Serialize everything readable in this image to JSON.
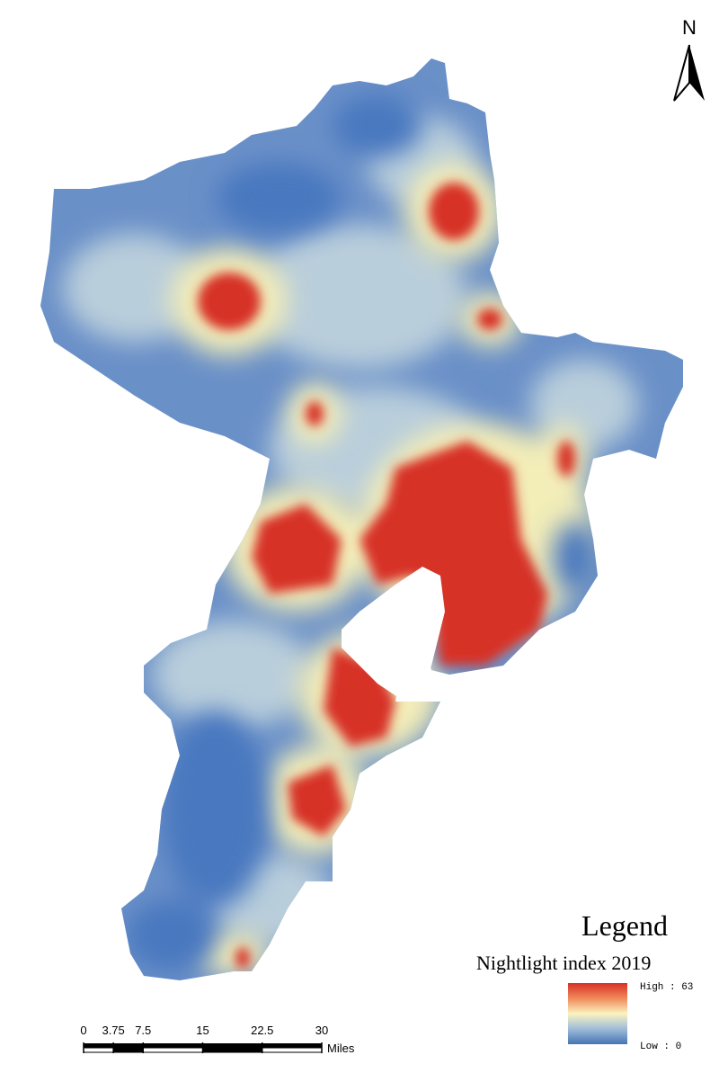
{
  "north_arrow": "N",
  "legend": {
    "title": "Legend",
    "subtitle": "Nightlight index 2019",
    "high": "High : 63",
    "low": "Low : 0"
  },
  "scale_bar": {
    "ticks": [
      0,
      3.75,
      7.5,
      15,
      22.5,
      30
    ],
    "unit": "Miles"
  }
}
